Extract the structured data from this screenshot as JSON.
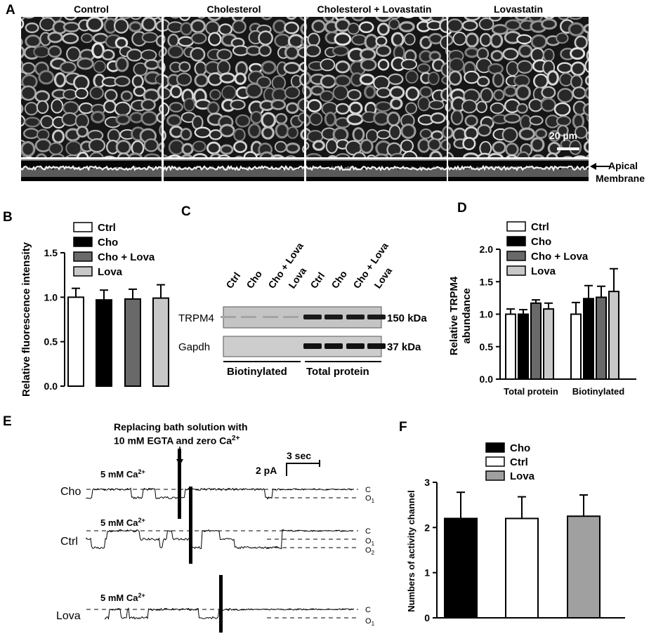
{
  "panel_a": {
    "label": "A",
    "titles": [
      "Control",
      "Cholesterol",
      "Cholesterol + Lovastatin",
      "Lovastatin"
    ],
    "scale_bar": "20 µm",
    "arrow_label_1": "Apical",
    "arrow_label_2": "Membrane"
  },
  "panel_b": {
    "label": "B"
  },
  "panel_c": {
    "label": "C",
    "lane_labels": [
      "Ctrl",
      "Cho",
      "Cho + Lova",
      "Lova",
      "Ctrl",
      "Cho",
      "Cho + Lova",
      "Lova"
    ],
    "row_labels": [
      "TRPM4",
      "Gapdh"
    ],
    "kda_labels": [
      "150 kDa",
      "37 kDa"
    ],
    "group_labels": [
      "Biotinylated",
      "Total protein"
    ]
  },
  "panel_d": {
    "label": "D"
  },
  "panel_e": {
    "label": "E",
    "annotation_1": "Replacing bath solution with",
    "annotation_2": "10 mM EGTA  and  zero Ca",
    "annotation_sup": "2+",
    "scale_time": "3 sec",
    "scale_current": "2 pA",
    "condition": "5 mM Ca",
    "condition_sup": "2+",
    "traces": [
      {
        "name": "Cho",
        "levels": [
          "C",
          "O",
          "1"
        ]
      },
      {
        "name": "Ctrl",
        "levels": [
          "C",
          "O",
          "1",
          "O",
          "2"
        ]
      },
      {
        "name": "Lova",
        "levels": [
          "C",
          "O",
          "1"
        ]
      }
    ]
  },
  "panel_f": {
    "label": "F"
  },
  "chart_data": [
    {
      "type": "bar",
      "panel": "B",
      "ylabel": "Relative fluorescence intensity",
      "ylim": [
        0,
        1.5
      ],
      "yticks": [
        "0.0",
        "0.5",
        "1.0",
        "1.5"
      ],
      "categories": [
        "Ctrl",
        "Cho",
        "Cho + Lova",
        "Lova"
      ],
      "values": [
        1.0,
        0.97,
        0.98,
        0.99
      ],
      "errors": [
        0.1,
        0.11,
        0.11,
        0.15
      ],
      "colors": [
        "#ffffff",
        "#000000",
        "#696969",
        "#c8c8c8"
      ],
      "legend": [
        "Ctrl",
        "Cho",
        "Cho + Lova",
        "Lova"
      ]
    },
    {
      "type": "bar",
      "panel": "D",
      "ylabel": "Relative TRPM4 abundance",
      "ylim": [
        0,
        2.0
      ],
      "yticks": [
        "0.0",
        "0.5",
        "1.0",
        "1.5",
        "2.0"
      ],
      "categories": [
        "Total protein",
        "Biotinylated"
      ],
      "series": [
        {
          "name": "Ctrl",
          "values": [
            1.0,
            1.0
          ],
          "errors": [
            0.08,
            0.18
          ]
        },
        {
          "name": "Cho",
          "values": [
            1.0,
            1.24
          ],
          "errors": [
            0.07,
            0.2
          ]
        },
        {
          "name": "Cho + Lova",
          "values": [
            1.17,
            1.26
          ],
          "errors": [
            0.05,
            0.17
          ]
        },
        {
          "name": "Lova",
          "values": [
            1.08,
            1.35
          ],
          "errors": [
            0.09,
            0.35
          ]
        }
      ],
      "colors": [
        "#ffffff",
        "#000000",
        "#696969",
        "#c8c8c8"
      ]
    },
    {
      "type": "bar",
      "panel": "F",
      "ylabel": "Numbers of activity channel",
      "ylim": [
        0,
        3
      ],
      "yticks": [
        "0",
        "1",
        "2",
        "3"
      ],
      "categories": [
        "Cho",
        "Ctrl",
        "Lova"
      ],
      "values": [
        2.2,
        2.2,
        2.25
      ],
      "errors": [
        0.58,
        0.48,
        0.47
      ],
      "colors": [
        "#000000",
        "#ffffff",
        "#a0a0a0"
      ],
      "legend": [
        "Cho",
        "Ctrl",
        "Lova"
      ]
    }
  ]
}
